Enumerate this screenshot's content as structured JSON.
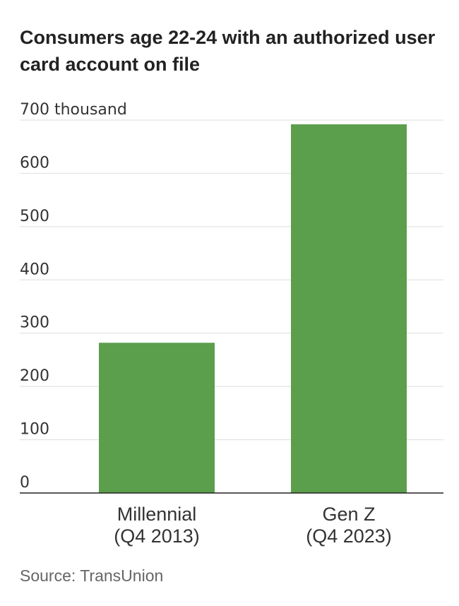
{
  "title": "Consumers age 22-24 with an authorized user card account on file",
  "source": "Source: TransUnion",
  "colors": {
    "bar": "#5b9e4c",
    "grid": "#dddddd",
    "axis": "#222222"
  },
  "chart_data": {
    "type": "bar",
    "title": "Consumers age 22-24 with an authorized user card account on file",
    "ylabel": "thousand",
    "ylim": [
      0,
      700
    ],
    "yticks": [
      0,
      100,
      200,
      300,
      400,
      500,
      600,
      700
    ],
    "ytick_labels": [
      "0",
      "100",
      "200",
      "300",
      "400",
      "500",
      "600",
      "700 thousand"
    ],
    "categories": [
      {
        "line1": "Millennial",
        "line2": "(Q4 2013)"
      },
      {
        "line1": "Gen Z",
        "line2": "(Q4 2023)"
      }
    ],
    "values": [
      282,
      692
    ]
  }
}
